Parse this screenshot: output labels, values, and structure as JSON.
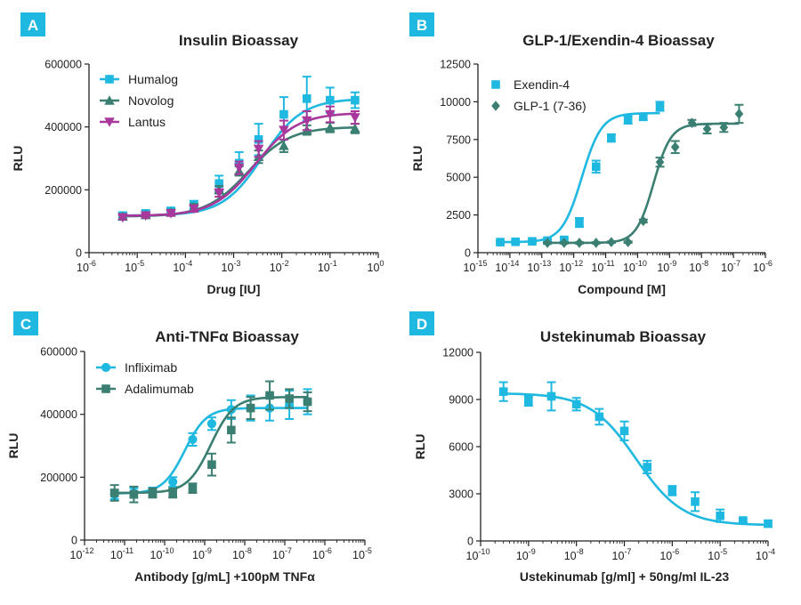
{
  "colors": {
    "cyan": "#1FB8E0",
    "teal": "#3A7F72",
    "magenta": "#A8389B",
    "badge": "#1FB8E0",
    "axis": "#222222"
  },
  "chart_data": [
    {
      "panel": "A",
      "type": "scatter",
      "title": "Insulin Bioassay",
      "xlabel": "Drug [IU]",
      "ylabel": "RLU",
      "x_scale": "log10",
      "xlim": [
        1e-06,
        1
      ],
      "x_ticks": [
        "-6",
        "-5",
        "-4",
        "-3",
        "-2",
        "-1",
        "0"
      ],
      "ylim": [
        0,
        600000
      ],
      "y_ticks": [
        0,
        200000,
        400000,
        600000
      ],
      "legend_position": "top-left",
      "series": [
        {
          "name": "Humalog",
          "color": "#1FB8E0",
          "marker": "square",
          "x": [
            5e-06,
            1.5e-05,
            5e-05,
            0.00015,
            0.0005,
            0.0013,
            0.0033,
            0.011,
            0.033,
            0.1,
            0.33
          ],
          "y": [
            118000,
            125000,
            133000,
            150000,
            220000,
            285000,
            360000,
            440000,
            490000,
            485000,
            485000
          ],
          "err": [
            10000,
            9000,
            10000,
            15000,
            25000,
            35000,
            50000,
            55000,
            70000,
            40000,
            25000
          ],
          "fit": {
            "bottom": 118000,
            "top": 490000,
            "logEC50": -2.4,
            "hill": 1.05
          }
        },
        {
          "name": "Novolog",
          "color": "#3A7F72",
          "marker": "triangle",
          "x": [
            5e-06,
            1.5e-05,
            5e-05,
            0.00015,
            0.0005,
            0.0013,
            0.0033,
            0.011,
            0.033,
            0.1,
            0.33
          ],
          "y": [
            115000,
            120000,
            128000,
            145000,
            200000,
            260000,
            305000,
            340000,
            390000,
            398000,
            395000
          ],
          "err": [
            8000,
            8000,
            9000,
            10000,
            12000,
            15000,
            20000,
            20000,
            15000,
            15000,
            15000
          ],
          "fit": {
            "bottom": 115000,
            "top": 400000,
            "logEC50": -2.7,
            "hill": 1.0
          }
        },
        {
          "name": "Lantus",
          "color": "#A8389B",
          "marker": "triangle-down",
          "x": [
            5e-06,
            1.5e-05,
            5e-05,
            0.00015,
            0.0005,
            0.0013,
            0.0033,
            0.011,
            0.033,
            0.1,
            0.33
          ],
          "y": [
            112000,
            118000,
            125000,
            140000,
            190000,
            270000,
            330000,
            390000,
            420000,
            440000,
            430000
          ],
          "err": [
            6000,
            7000,
            8000,
            10000,
            12000,
            20000,
            25000,
            30000,
            30000,
            25000,
            20000
          ],
          "fit": {
            "bottom": 117000,
            "top": 445000,
            "logEC50": -2.55,
            "hill": 1.0
          }
        }
      ]
    },
    {
      "panel": "B",
      "type": "scatter",
      "title": "GLP-1/Exendin-4 Bioassay",
      "xlabel": "Compound [M]",
      "ylabel": "RLU",
      "x_scale": "log10",
      "xlim": [
        1e-15,
        1e-06
      ],
      "x_ticks": [
        "-15",
        "-14",
        "-13",
        "-12",
        "-11",
        "-10",
        "-9",
        "-8",
        "-7",
        "-6"
      ],
      "ylim": [
        0,
        12500
      ],
      "y_ticks": [
        0,
        2500,
        5000,
        7500,
        10000,
        12500
      ],
      "legend_position": "top-right",
      "series": [
        {
          "name": "Exendin-4",
          "color": "#1FB8E0",
          "marker": "square",
          "x": [
            5e-15,
            1.5e-14,
            5e-14,
            1.5e-13,
            5e-13,
            1.5e-12,
            5e-12,
            1.5e-11,
            5e-11,
            1.5e-10,
            5e-10
          ],
          "y": [
            700,
            720,
            750,
            800,
            850,
            2000,
            5700,
            7600,
            8800,
            9000,
            9700
          ],
          "err": [
            80,
            80,
            80,
            80,
            100,
            300,
            400,
            250,
            250,
            200,
            300
          ],
          "fit": {
            "bottom": 700,
            "top": 9250,
            "logEC50": -11.75,
            "hill": 1.4
          }
        },
        {
          "name": "GLP-1 (7-36)",
          "color": "#3A7F72",
          "marker": "diamond",
          "x": [
            1.5e-13,
            5e-13,
            1.5e-12,
            5e-12,
            1.5e-11,
            5e-11,
            1.5e-10,
            5e-10,
            1.5e-09,
            5e-09,
            1.5e-08,
            5e-08,
            1.5e-07
          ],
          "y": [
            650,
            650,
            650,
            650,
            700,
            700,
            2100,
            6000,
            7000,
            8600,
            8200,
            8300,
            9200
          ],
          "err": [
            50,
            50,
            50,
            50,
            50,
            50,
            100,
            300,
            400,
            200,
            300,
            300,
            600
          ],
          "fit": {
            "bottom": 650,
            "top": 8550,
            "logEC50": -9.5,
            "hill": 1.6
          }
        }
      ]
    },
    {
      "panel": "C",
      "type": "scatter",
      "title": "Anti-TNFα Bioassay",
      "xlabel": "Antibody [g/mL]  +100pM TNFα",
      "ylabel": "RLU",
      "x_scale": "log10",
      "xlim": [
        1e-12,
        1e-05
      ],
      "x_ticks": [
        "-12",
        "-11",
        "-10",
        "-9",
        "-8",
        "-7",
        "-6",
        "-5"
      ],
      "ylim": [
        0,
        600000
      ],
      "y_ticks": [
        0,
        200000,
        400000,
        600000
      ],
      "legend_position": "top-left",
      "series": [
        {
          "name": "Infliximab",
          "color": "#1FB8E0",
          "marker": "circle",
          "x": [
            5.6e-12,
            1.7e-11,
            5e-11,
            1.6e-10,
            5e-10,
            1.5e-09,
            4.6e-09,
            1.4e-08,
            4.2e-08,
            1.3e-07,
            3.7e-07
          ],
          "y": [
            145000,
            150000,
            155000,
            185000,
            320000,
            370000,
            415000,
            420000,
            420000,
            430000,
            440000
          ],
          "err": [
            15000,
            15000,
            12000,
            15000,
            20000,
            20000,
            30000,
            40000,
            40000,
            45000,
            40000
          ],
          "fit": {
            "bottom": 148000,
            "top": 420000,
            "logEC50": -9.5,
            "hill": 1.6
          }
        },
        {
          "name": "Adalimumab",
          "color": "#3A7F72",
          "marker": "square",
          "x": [
            5.6e-12,
            1.7e-11,
            5e-11,
            1.6e-10,
            5e-10,
            1.5e-09,
            4.6e-09,
            1.4e-08,
            4.2e-08,
            1.3e-07,
            3.7e-07
          ],
          "y": [
            150000,
            145000,
            150000,
            150000,
            165000,
            240000,
            350000,
            420000,
            460000,
            450000,
            440000
          ],
          "err": [
            25000,
            25000,
            15000,
            15000,
            15000,
            35000,
            40000,
            35000,
            45000,
            30000,
            30000
          ],
          "fit": {
            "bottom": 150000,
            "top": 455000,
            "logEC50": -8.85,
            "hill": 1.5
          }
        }
      ]
    },
    {
      "panel": "D",
      "type": "scatter",
      "title": "Ustekinumab Bioassay",
      "xlabel": "Ustekinumab [g/ml] + 50ng/ml IL-23",
      "ylabel": "RLU",
      "x_scale": "log10",
      "xlim": [
        1e-10,
        0.0001
      ],
      "x_ticks": [
        "-10",
        "-9",
        "-8",
        "-7",
        "-6",
        "-5",
        "-4"
      ],
      "ylim": [
        0,
        12000
      ],
      "y_ticks": [
        0,
        3000,
        6000,
        9000,
        12000
      ],
      "legend_position": "none",
      "series": [
        {
          "color": "#1FB8E0",
          "marker": "square",
          "x": [
            3e-10,
            1e-09,
            3e-09,
            1e-08,
            3e-08,
            1e-07,
            3e-07,
            1e-06,
            3e-06,
            1e-05,
            3e-05,
            0.0001
          ],
          "y": [
            9500,
            8900,
            9200,
            8700,
            7900,
            7000,
            4700,
            3200,
            2500,
            1600,
            1300,
            1100
          ],
          "err": [
            600,
            300,
            900,
            400,
            500,
            600,
            400,
            300,
            600,
            400,
            100,
            200
          ],
          "fit": {
            "bottom": 1000,
            "top": 9400,
            "logEC50": -6.75,
            "hill": -0.9
          }
        }
      ]
    }
  ]
}
